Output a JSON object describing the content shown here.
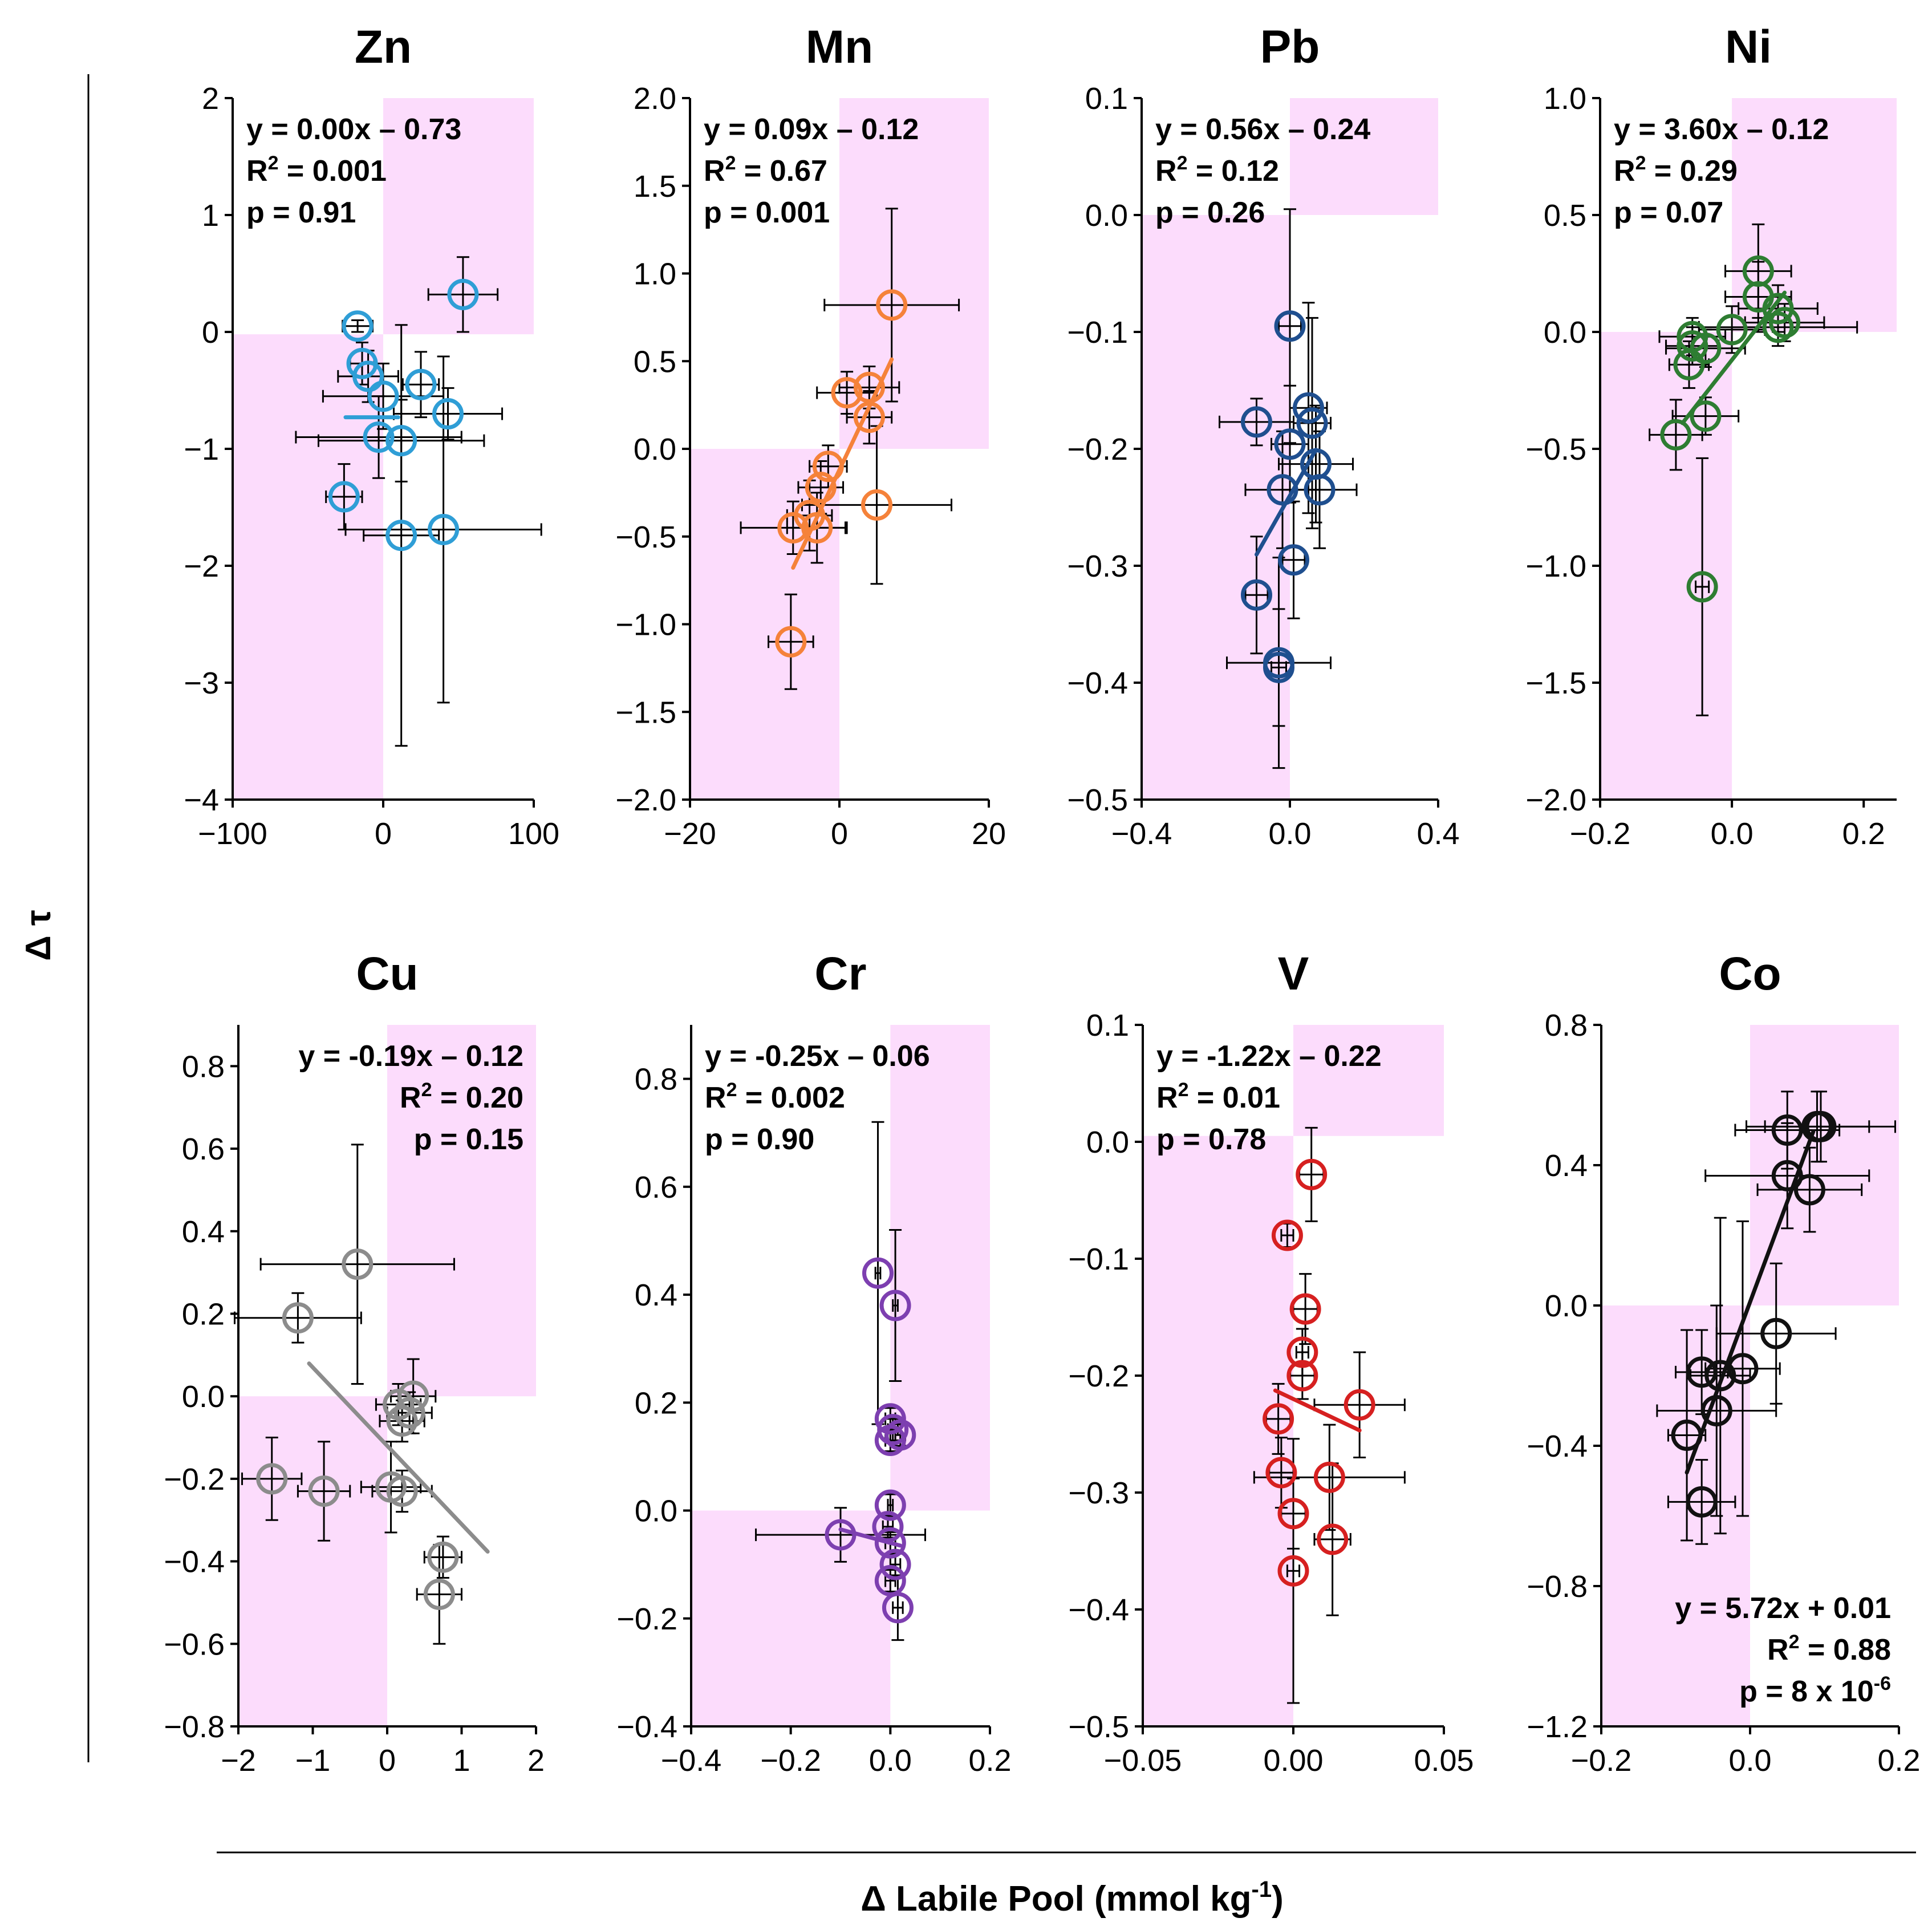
{
  "figure": {
    "ylabel": "Δ τ",
    "xlabel": "Δ Labile Pool (mmol kg",
    "xlabel_sup": "-1",
    "xlabel_end": ")"
  },
  "colors": {
    "shade": "#fcdcfc",
    "errorbar": "#000000",
    "axis": "#000000"
  },
  "chart_data": [
    {
      "type": "scatter",
      "title": "Zn",
      "color": "#2f9ed6",
      "xlim": [
        -100,
        100
      ],
      "ylim": [
        -4,
        2
      ],
      "xticks": [
        -100,
        0,
        100
      ],
      "xtick_labels": [
        "−100",
        "0",
        "100"
      ],
      "yticks": [
        -4,
        -3,
        -2,
        -1,
        0,
        1,
        2
      ],
      "ytick_labels": [
        "−4",
        "−3",
        "−2",
        "−1",
        "0",
        "1",
        "2"
      ],
      "shade_y": -0.02,
      "fit": {
        "slope": 0.0,
        "intercept": -0.73,
        "x_range": [
          -25,
          10
        ]
      },
      "stats": {
        "eq": "y = 0.00x – 0.73",
        "r2_label": "R",
        "r2_sup": "2",
        "r2_value": " = 0.001",
        "p": "p = 0.91",
        "corner": "top-left"
      },
      "points": [
        {
          "x": -17,
          "y": 0.05,
          "xerr": 10,
          "yerr": 0.05
        },
        {
          "x": -14,
          "y": -0.27,
          "xerr": 8,
          "yerr": 0.18
        },
        {
          "x": -10,
          "y": -0.38,
          "xerr": 20,
          "yerr": 0.22
        },
        {
          "x": 0,
          "y": -0.55,
          "xerr": 40,
          "yerr": 0.28
        },
        {
          "x": 25,
          "y": -0.45,
          "xerr": 12,
          "yerr": 0.28
        },
        {
          "x": 43,
          "y": -0.7,
          "xerr": 36,
          "yerr": 0.22
        },
        {
          "x": 53,
          "y": 0.32,
          "xerr": 23,
          "yerr": 0.32
        },
        {
          "x": -3,
          "y": -0.9,
          "xerr": 55,
          "yerr": 0.35
        },
        {
          "x": 12,
          "y": -0.93,
          "xerr": 55,
          "yerr": 0.35
        },
        {
          "x": -26,
          "y": -1.41,
          "xerr": 12,
          "yerr": 0.28
        },
        {
          "x": 12,
          "y": -1.74,
          "xerr": 25,
          "yerr": 1.8
        },
        {
          "x": 40,
          "y": -1.69,
          "xerr": 65,
          "yerr": 1.48
        }
      ]
    },
    {
      "type": "scatter",
      "title": "Mn",
      "color": "#f5823a",
      "xlim": [
        -20,
        20
      ],
      "ylim": [
        -2.0,
        2.0
      ],
      "xticks": [
        -20,
        0,
        20
      ],
      "xtick_labels": [
        "−20",
        "0",
        "20"
      ],
      "yticks": [
        -2.0,
        -1.5,
        -1.0,
        -0.5,
        0.0,
        0.5,
        1.0,
        1.5,
        2.0
      ],
      "ytick_labels": [
        "−2.0",
        "−1.5",
        "−1.0",
        "−0.5",
        "0.0",
        "0.5",
        "1.0",
        "1.5",
        "2.0"
      ],
      "shade_y": 0.0,
      "fit": {
        "slope": 0.09,
        "intercept": -0.12,
        "x_range": [
          -6.2,
          7
        ]
      },
      "stats": {
        "eq": "y = 0.09x – 0.12",
        "r2_label": "R",
        "r2_sup": "2",
        "r2_value": " = 0.67",
        "p": "p = 0.001",
        "corner": "top-left"
      },
      "points": [
        {
          "x": 7,
          "y": 0.82,
          "xerr": 9,
          "yerr": 0.55
        },
        {
          "x": 1,
          "y": 0.32,
          "xerr": 4,
          "yerr": 0.12
        },
        {
          "x": 4,
          "y": 0.35,
          "xerr": 4,
          "yerr": 0.12
        },
        {
          "x": 4,
          "y": 0.18,
          "xerr": 3,
          "yerr": 0.15
        },
        {
          "x": 5,
          "y": -0.32,
          "xerr": 10,
          "yerr": 0.45
        },
        {
          "x": -1.5,
          "y": -0.1,
          "xerr": 2.5,
          "yerr": 0.12
        },
        {
          "x": -2.5,
          "y": -0.22,
          "xerr": 3,
          "yerr": 0.15
        },
        {
          "x": -4,
          "y": -0.38,
          "xerr": 3,
          "yerr": 0.2
        },
        {
          "x": -3,
          "y": -0.45,
          "xerr": 4,
          "yerr": 0.2
        },
        {
          "x": -6.2,
          "y": -0.45,
          "xerr": 7,
          "yerr": 0.15
        },
        {
          "x": -6.5,
          "y": -1.1,
          "xerr": 3,
          "yerr": 0.27
        }
      ]
    },
    {
      "type": "scatter",
      "title": "Pb",
      "color": "#1f4f8f",
      "xlim": [
        -0.4,
        0.4
      ],
      "ylim": [
        -0.5,
        0.1
      ],
      "xticks": [
        -0.4,
        0.0,
        0.4
      ],
      "xtick_labels": [
        "−0.4",
        "0.0",
        "0.4"
      ],
      "yticks": [
        -0.5,
        -0.4,
        -0.3,
        -0.2,
        -0.1,
        0.0,
        0.1
      ],
      "ytick_labels": [
        "−0.5",
        "−0.4",
        "−0.3",
        "−0.2",
        "−0.1",
        "0.0",
        "0.1"
      ],
      "shade_y": 0.0,
      "fit": {
        "slope": 0.56,
        "intercept": -0.24,
        "x_range": [
          -0.09,
          0.07
        ]
      },
      "stats": {
        "eq": "y = 0.56x – 0.24",
        "r2_label": "R",
        "r2_sup": "2",
        "r2_value": " = 0.12",
        "p": "p = 0.26",
        "corner": "top-left"
      },
      "points": [
        {
          "x": 0.0,
          "y": -0.095,
          "xerr": 0.03,
          "yerr": 0.1
        },
        {
          "x": -0.09,
          "y": -0.177,
          "xerr": 0.1,
          "yerr": 0.02
        },
        {
          "x": 0.05,
          "y": -0.165,
          "xerr": 0.05,
          "yerr": 0.09
        },
        {
          "x": 0.06,
          "y": -0.178,
          "xerr": 0.05,
          "yerr": 0.09
        },
        {
          "x": 0.0,
          "y": -0.196,
          "xerr": 0.05,
          "yerr": 0.05
        },
        {
          "x": 0.07,
          "y": -0.213,
          "xerr": 0.1,
          "yerr": 0.05
        },
        {
          "x": -0.02,
          "y": -0.235,
          "xerr": 0.1,
          "yerr": 0.05
        },
        {
          "x": 0.08,
          "y": -0.235,
          "xerr": 0.1,
          "yerr": 0.05
        },
        {
          "x": 0.01,
          "y": -0.295,
          "xerr": 0.03,
          "yerr": 0.05
        },
        {
          "x": -0.09,
          "y": -0.325,
          "xerr": 0.03,
          "yerr": 0.05
        },
        {
          "x": -0.03,
          "y": -0.383,
          "xerr": 0.14,
          "yerr": 0.09
        },
        {
          "x": -0.03,
          "y": -0.387,
          "xerr": 0.02,
          "yerr": 0.05
        }
      ]
    },
    {
      "type": "scatter",
      "title": "Ni",
      "color": "#2e7d32",
      "xlim": [
        -0.2,
        0.25
      ],
      "ylim": [
        -2.0,
        1.0
      ],
      "xticks": [
        -0.2,
        0.0,
        0.2
      ],
      "xtick_labels": [
        "−0.2",
        "0.0",
        "0.2"
      ],
      "yticks": [
        -2.0,
        -1.5,
        -1.0,
        -0.5,
        0.0,
        0.5,
        1.0
      ],
      "ytick_labels": [
        "−2.0",
        "−1.5",
        "−1.0",
        "−0.5",
        "0.0",
        "0.5",
        "1.0"
      ],
      "shade_y": 0.0,
      "fit": {
        "slope": 3.6,
        "intercept": -0.12,
        "x_range": [
          -0.075,
          0.08
        ]
      },
      "stats": {
        "eq": "y = 3.60x – 0.12",
        "r2_label": "R",
        "r2_sup": "2",
        "r2_value": " = 0.29",
        "p": "p = 0.07",
        "corner": "top-left"
      },
      "points": [
        {
          "x": 0.04,
          "y": 0.26,
          "xerr": 0.05,
          "yerr": 0.2
        },
        {
          "x": 0.04,
          "y": 0.15,
          "xerr": 0.05,
          "yerr": 0.15
        },
        {
          "x": 0.07,
          "y": 0.1,
          "xerr": 0.06,
          "yerr": 0.1
        },
        {
          "x": 0.08,
          "y": 0.04,
          "xerr": 0.06,
          "yerr": 0.08
        },
        {
          "x": 0.07,
          "y": 0.02,
          "xerr": 0.12,
          "yerr": 0.08
        },
        {
          "x": 0.0,
          "y": 0.01,
          "xerr": 0.05,
          "yerr": 0.1
        },
        {
          "x": -0.06,
          "y": -0.02,
          "xerr": 0.05,
          "yerr": 0.08
        },
        {
          "x": -0.06,
          "y": -0.06,
          "xerr": 0.04,
          "yerr": 0.08
        },
        {
          "x": -0.04,
          "y": -0.07,
          "xerr": 0.06,
          "yerr": 0.08
        },
        {
          "x": -0.065,
          "y": -0.14,
          "xerr": 0.03,
          "yerr": 0.1
        },
        {
          "x": -0.04,
          "y": -0.36,
          "xerr": 0.05,
          "yerr": 0.08
        },
        {
          "x": -0.085,
          "y": -0.44,
          "xerr": 0.04,
          "yerr": 0.15
        },
        {
          "x": -0.045,
          "y": -1.09,
          "xerr": 0.01,
          "yerr": 0.55
        }
      ]
    },
    {
      "type": "scatter",
      "title": "Cu",
      "color": "#8c8c8c",
      "xlim": [
        -2,
        2
      ],
      "ylim": [
        -0.8,
        0.9
      ],
      "xticks": [
        -2,
        -1,
        0,
        1,
        2
      ],
      "xtick_labels": [
        "−2",
        "−1",
        "0",
        "1",
        "2"
      ],
      "yticks": [
        -0.8,
        -0.6,
        -0.4,
        -0.2,
        0.0,
        0.2,
        0.4,
        0.6,
        0.8
      ],
      "ytick_labels": [
        "−0.8",
        "−0.6",
        "−0.4",
        "−0.2",
        "0.0",
        "0.2",
        "0.4",
        "0.6",
        "0.8"
      ],
      "shade_y": 0.0,
      "fit": {
        "slope": -0.19,
        "intercept": -0.12,
        "x_range": [
          -1.05,
          1.35
        ]
      },
      "stats": {
        "eq": "y = -0.19x – 0.12",
        "r2_label": "R",
        "r2_sup": "2",
        "r2_value": " = 0.20",
        "p": "p = 0.15",
        "corner": "top-right"
      },
      "points": [
        {
          "x": -0.4,
          "y": 0.32,
          "xerr": 1.3,
          "yerr": 0.29
        },
        {
          "x": -1.2,
          "y": 0.19,
          "xerr": 0.85,
          "yerr": 0.06
        },
        {
          "x": 0.15,
          "y": -0.02,
          "xerr": 0.3,
          "yerr": 0.05
        },
        {
          "x": 0.35,
          "y": 0.0,
          "xerr": 0.3,
          "yerr": 0.09
        },
        {
          "x": 0.3,
          "y": -0.04,
          "xerr": 0.3,
          "yerr": 0.05
        },
        {
          "x": 0.2,
          "y": -0.06,
          "xerr": 0.3,
          "yerr": 0.05
        },
        {
          "x": -1.55,
          "y": -0.2,
          "xerr": 0.4,
          "yerr": 0.1
        },
        {
          "x": -0.85,
          "y": -0.23,
          "xerr": 0.35,
          "yerr": 0.12
        },
        {
          "x": 0.05,
          "y": -0.22,
          "xerr": 0.4,
          "yerr": 0.11
        },
        {
          "x": 0.2,
          "y": -0.23,
          "xerr": 0.4,
          "yerr": 0.05
        },
        {
          "x": 0.75,
          "y": -0.39,
          "xerr": 0.25,
          "yerr": 0.05
        },
        {
          "x": 0.7,
          "y": -0.48,
          "xerr": 0.3,
          "yerr": 0.12
        }
      ]
    },
    {
      "type": "scatter",
      "title": "Cr",
      "color": "#7d3fb0",
      "xlim": [
        -0.4,
        0.2
      ],
      "ylim": [
        -0.4,
        0.9
      ],
      "xticks": [
        -0.4,
        -0.2,
        0.0,
        0.2
      ],
      "xtick_labels": [
        "−0.4",
        "−0.2",
        "0.0",
        "0.2"
      ],
      "yticks": [
        -0.4,
        -0.2,
        0.0,
        0.2,
        0.4,
        0.6,
        0.8
      ],
      "ytick_labels": [
        "−0.4",
        "−0.2",
        "0.0",
        "0.2",
        "0.4",
        "0.6",
        "0.8"
      ],
      "shade_y": 0.0,
      "fit": {
        "slope": -0.25,
        "intercept": -0.06,
        "x_range": [
          -0.1,
          0.02
        ]
      },
      "stats": {
        "eq": "y = -0.25x – 0.06",
        "r2_label": "R",
        "r2_sup": "2",
        "r2_value": " = 0.002",
        "p": "p = 0.90",
        "corner": "top-left"
      },
      "points": [
        {
          "x": -0.025,
          "y": 0.44,
          "xerr": 0.005,
          "yerr": 0.28
        },
        {
          "x": 0.01,
          "y": 0.38,
          "xerr": 0.005,
          "yerr": 0.14
        },
        {
          "x": 0.0,
          "y": 0.17,
          "xerr": 0.01,
          "yerr": 0.02
        },
        {
          "x": 0.005,
          "y": 0.15,
          "xerr": 0.01,
          "yerr": 0.02
        },
        {
          "x": 0.02,
          "y": 0.14,
          "xerr": 0.01,
          "yerr": 0.02
        },
        {
          "x": 0.0,
          "y": 0.13,
          "xerr": 0.01,
          "yerr": 0.02
        },
        {
          "x": 0.0,
          "y": 0.01,
          "xerr": 0.005,
          "yerr": 0.02
        },
        {
          "x": -0.005,
          "y": -0.03,
          "xerr": 0.01,
          "yerr": 0.02
        },
        {
          "x": 0.0,
          "y": -0.06,
          "xerr": 0.01,
          "yerr": 0.02
        },
        {
          "x": 0.01,
          "y": -0.1,
          "xerr": 0.01,
          "yerr": 0.02
        },
        {
          "x": 0.0,
          "y": -0.13,
          "xerr": 0.01,
          "yerr": 0.02
        },
        {
          "x": 0.015,
          "y": -0.18,
          "xerr": 0.01,
          "yerr": 0.06
        },
        {
          "x": -0.1,
          "y": -0.045,
          "xerr": 0.17,
          "yerr": 0.05
        }
      ]
    },
    {
      "type": "scatter",
      "title": "V",
      "color": "#d62020",
      "xlim": [
        -0.05,
        0.05
      ],
      "ylim": [
        -0.5,
        0.1
      ],
      "xticks": [
        -0.05,
        0.0,
        0.05
      ],
      "xtick_labels": [
        "−0.05",
        "0.00",
        "0.05"
      ],
      "yticks": [
        -0.5,
        -0.4,
        -0.3,
        -0.2,
        -0.1,
        0.0,
        0.1
      ],
      "ytick_labels": [
        "−0.5",
        "−0.4",
        "−0.3",
        "−0.2",
        "−0.1",
        "0.0",
        "0.1"
      ],
      "shade_y": 0.005,
      "fit": {
        "slope": -1.22,
        "intercept": -0.22,
        "x_range": [
          -0.006,
          0.022
        ]
      },
      "stats": {
        "eq": "y = -1.22x – 0.22",
        "r2_label": "R",
        "r2_sup": "2",
        "r2_value": " = 0.01",
        "p": "p = 0.78",
        "corner": "top-left"
      },
      "points": [
        {
          "x": 0.006,
          "y": -0.028,
          "xerr": 0.004,
          "yerr": 0.04
        },
        {
          "x": -0.002,
          "y": -0.08,
          "xerr": 0.002,
          "yerr": 0.01
        },
        {
          "x": 0.004,
          "y": -0.143,
          "xerr": 0.004,
          "yerr": 0.03
        },
        {
          "x": 0.003,
          "y": -0.18,
          "xerr": 0.002,
          "yerr": 0.02
        },
        {
          "x": 0.003,
          "y": -0.2,
          "xerr": 0.004,
          "yerr": 0.02
        },
        {
          "x": -0.005,
          "y": -0.237,
          "xerr": 0.004,
          "yerr": 0.03
        },
        {
          "x": 0.022,
          "y": -0.225,
          "xerr": 0.015,
          "yerr": 0.045
        },
        {
          "x": -0.004,
          "y": -0.283,
          "xerr": 0.004,
          "yerr": 0.03
        },
        {
          "x": 0.012,
          "y": -0.287,
          "xerr": 0.025,
          "yerr": 0.045
        },
        {
          "x": 0.0,
          "y": -0.318,
          "xerr": 0.004,
          "yerr": 0.03
        },
        {
          "x": 0.013,
          "y": -0.34,
          "xerr": 0.006,
          "yerr": 0.065
        },
        {
          "x": 0.0,
          "y": -0.367,
          "xerr": 0.002,
          "yerr": 0.113
        }
      ]
    },
    {
      "type": "scatter",
      "title": "Co",
      "color": "#111111",
      "xlim": [
        -0.2,
        0.2
      ],
      "ylim": [
        -1.2,
        0.8
      ],
      "xticks": [
        -0.2,
        0.0,
        0.2
      ],
      "xtick_labels": [
        "−0.2",
        "0.0",
        "0.2"
      ],
      "yticks": [
        -1.2,
        -0.8,
        -0.4,
        0.0,
        0.4,
        0.8
      ],
      "ytick_labels": [
        "−1.2",
        "−0.8",
        "−0.4",
        "0.0",
        "0.4",
        "0.8"
      ],
      "shade_y": 0.0,
      "fit": {
        "slope": 5.72,
        "intercept": 0.01,
        "x_range": [
          -0.085,
          0.085
        ]
      },
      "stats": {
        "eq": "y = 5.72x + 0.01",
        "r2_label": "R",
        "r2_sup": "2",
        "r2_value": " = 0.88",
        "p": "p = 8 x 10",
        "p_sup": "-6",
        "corner": "bottom-right"
      },
      "points": [
        {
          "x": 0.09,
          "y": 0.51,
          "xerr": 0.07,
          "yerr": 0.1
        },
        {
          "x": 0.095,
          "y": 0.51,
          "xerr": 0.1,
          "yerr": 0.1
        },
        {
          "x": 0.05,
          "y": 0.5,
          "xerr": 0.07,
          "yerr": 0.11
        },
        {
          "x": 0.05,
          "y": 0.37,
          "xerr": 0.11,
          "yerr": 0.15
        },
        {
          "x": 0.08,
          "y": 0.33,
          "xerr": 0.07,
          "yerr": 0.12
        },
        {
          "x": 0.035,
          "y": -0.08,
          "xerr": 0.08,
          "yerr": 0.2
        },
        {
          "x": -0.01,
          "y": -0.18,
          "xerr": 0.05,
          "yerr": 0.42
        },
        {
          "x": -0.04,
          "y": -0.2,
          "xerr": 0.04,
          "yerr": 0.45
        },
        {
          "x": -0.065,
          "y": -0.19,
          "xerr": 0.035,
          "yerr": 0.12
        },
        {
          "x": -0.045,
          "y": -0.3,
          "xerr": 0.08,
          "yerr": 0.3
        },
        {
          "x": -0.085,
          "y": -0.37,
          "xerr": 0.025,
          "yerr": 0.3
        },
        {
          "x": -0.065,
          "y": -0.56,
          "xerr": 0.045,
          "yerr": 0.12
        }
      ]
    }
  ]
}
